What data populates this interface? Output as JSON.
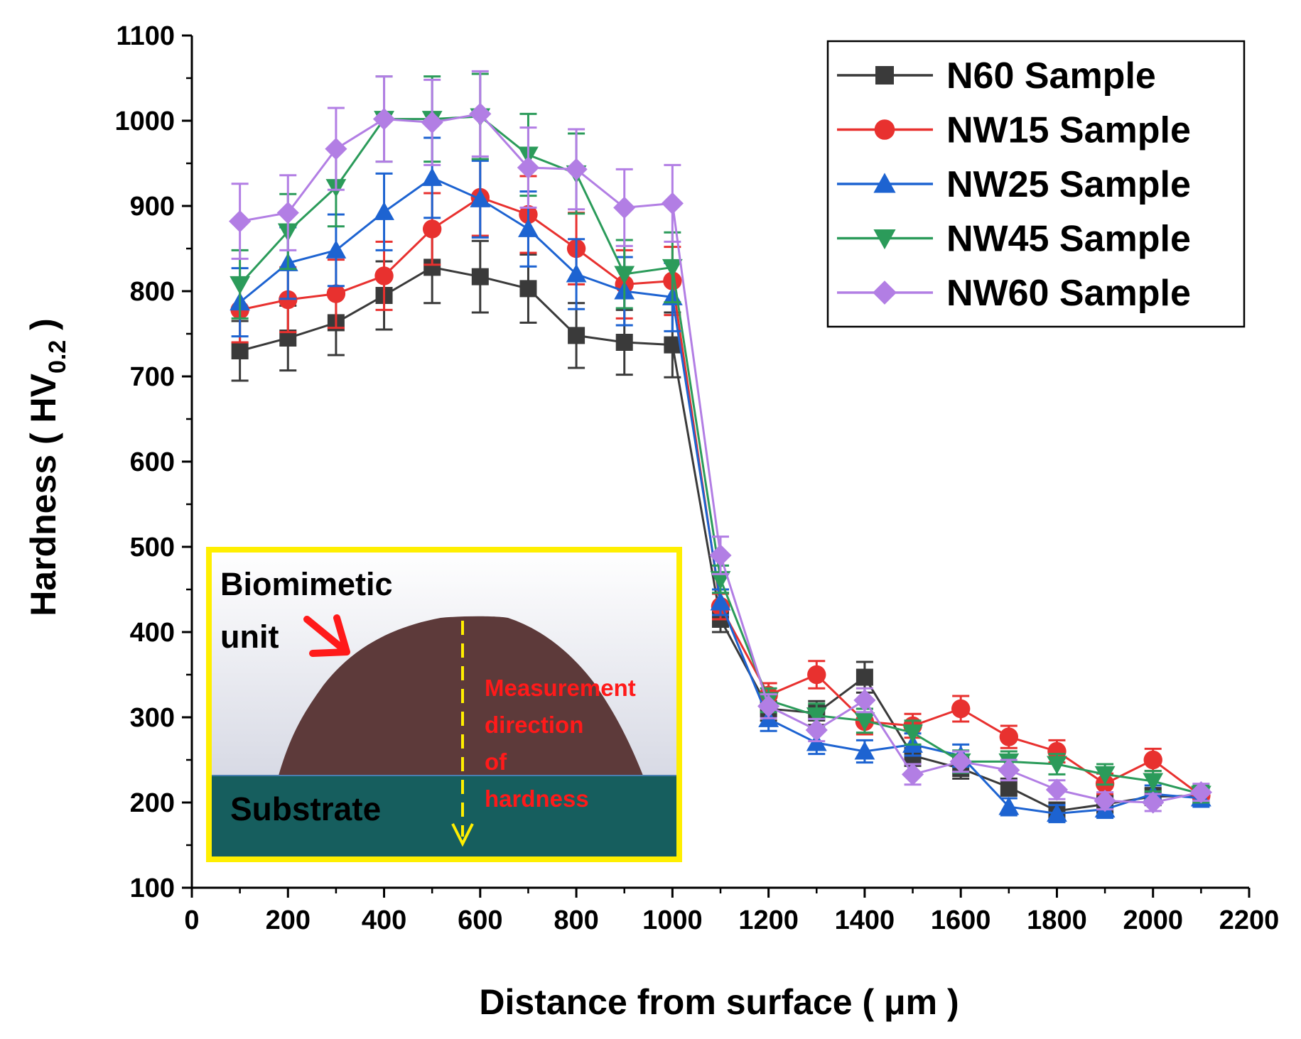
{
  "chart_data": {
    "type": "line",
    "xlabel": "Distance from surface ( μm )",
    "ylabel_main": "Hardness ( HV",
    "ylabel_sub": "0.2",
    "ylabel_end": " )",
    "xlim": [
      0,
      2200
    ],
    "ylim": [
      100,
      1100
    ],
    "xticks": [
      0,
      200,
      400,
      600,
      800,
      1000,
      1200,
      1400,
      1600,
      1800,
      2000,
      2200
    ],
    "yticks": [
      100,
      200,
      300,
      400,
      500,
      600,
      700,
      800,
      900,
      1000,
      1100
    ],
    "legend_position": "top-right",
    "x": [
      100,
      200,
      300,
      400,
      500,
      600,
      700,
      800,
      900,
      1000,
      1100,
      1200,
      1300,
      1400,
      1500,
      1600,
      1700,
      1800,
      1900,
      2000,
      2100
    ],
    "series": [
      {
        "name": "N60 Sample",
        "color": "#3a3a3a",
        "marker": "square",
        "values": [
          730,
          745,
          763,
          795,
          828,
          817,
          803,
          748,
          740,
          737,
          415,
          310,
          305,
          347,
          255,
          240,
          218,
          190,
          198,
          207,
          208
        ],
        "errors": [
          35,
          38,
          38,
          40,
          42,
          42,
          40,
          38,
          38,
          38,
          15,
          14,
          14,
          18,
          12,
          12,
          10,
          10,
          10,
          10,
          10
        ]
      },
      {
        "name": "NW15 Sample",
        "color": "#e8312f",
        "marker": "circle",
        "values": [
          778,
          790,
          797,
          818,
          873,
          910,
          890,
          850,
          808,
          812,
          430,
          326,
          350,
          295,
          290,
          310,
          277,
          260,
          222,
          250,
          208
        ],
        "errors": [
          38,
          38,
          40,
          40,
          42,
          45,
          45,
          42,
          40,
          40,
          15,
          14,
          16,
          15,
          14,
          15,
          13,
          13,
          12,
          13,
          10
        ]
      },
      {
        "name": "NW25 Sample",
        "color": "#1d63d1",
        "marker": "triangle-up",
        "values": [
          787,
          833,
          848,
          893,
          933,
          908,
          873,
          820,
          800,
          793,
          435,
          298,
          270,
          260,
          268,
          255,
          195,
          187,
          192,
          210,
          205
        ],
        "errors": [
          40,
          42,
          42,
          45,
          47,
          45,
          44,
          41,
          40,
          40,
          15,
          14,
          13,
          13,
          13,
          13,
          10,
          10,
          10,
          10,
          10
        ]
      },
      {
        "name": "NW45 Sample",
        "color": "#2b9b5a",
        "marker": "triangle-down",
        "values": [
          808,
          870,
          922,
          1002,
          1002,
          1005,
          960,
          938,
          820,
          828,
          462,
          320,
          302,
          296,
          282,
          248,
          248,
          245,
          233,
          225,
          210
        ],
        "errors": [
          40,
          44,
          46,
          50,
          50,
          50,
          48,
          47,
          40,
          41,
          16,
          14,
          14,
          14,
          14,
          13,
          12,
          12,
          12,
          12,
          10
        ]
      },
      {
        "name": "NW60 Sample",
        "color": "#b27ee4",
        "marker": "diamond",
        "values": [
          882,
          892,
          967,
          1002,
          998,
          1008,
          945,
          943,
          898,
          903,
          490,
          313,
          285,
          320,
          233,
          248,
          238,
          215,
          202,
          200,
          212
        ],
        "errors": [
          44,
          44,
          48,
          50,
          50,
          50,
          47,
          47,
          45,
          45,
          22,
          14,
          13,
          14,
          12,
          12,
          12,
          11,
          10,
          10,
          10
        ]
      }
    ]
  },
  "inset": {
    "unit_label_line1": "Biomimetic",
    "unit_label_line2": "unit",
    "measure_line1": "Measurement",
    "measure_line2": "direction",
    "measure_line3": "of",
    "measure_line4": "hardness",
    "substrate_label": "Substrate",
    "border_color": "#ffef00",
    "unit_color": "#5d3a3a",
    "substrate_color": "#165e5e",
    "arrow_color": "#ff1a1a",
    "dashed_color": "#ffef00"
  }
}
